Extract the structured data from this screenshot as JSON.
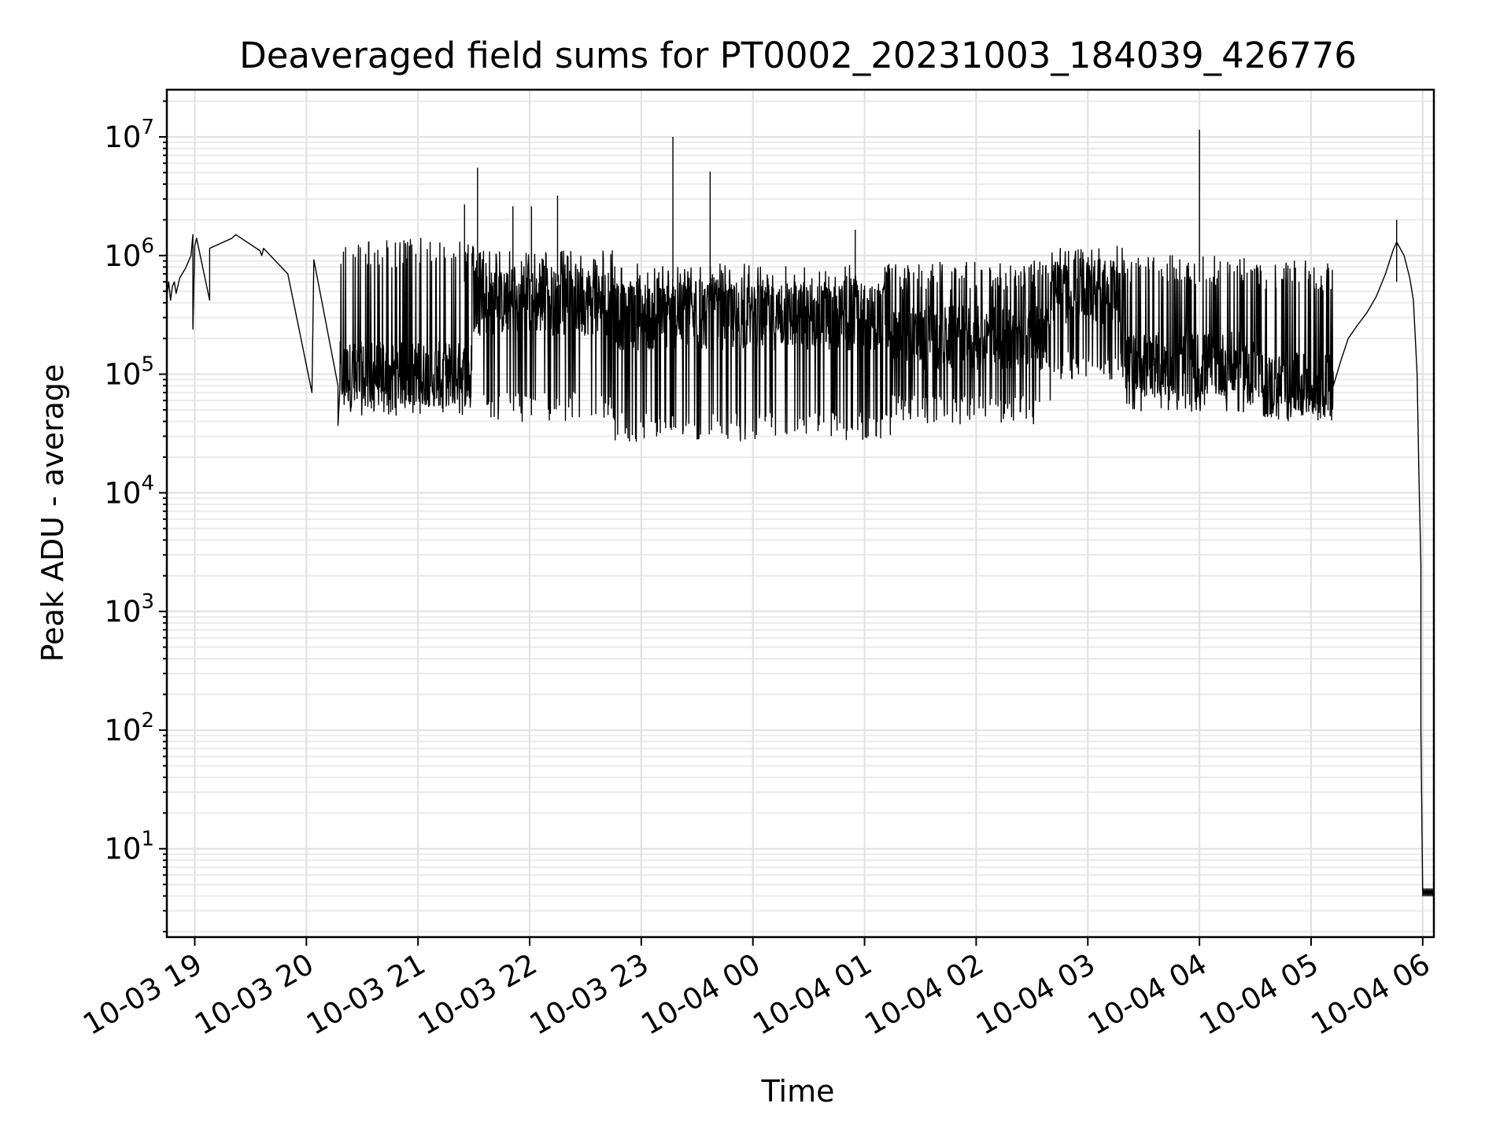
{
  "chart_data": {
    "type": "line",
    "title": "Deaveraged field sums for PT0002_20231003_184039_426776",
    "xlabel": "Time",
    "ylabel": "Peak ADU - average",
    "yscale": "log",
    "xlim": [
      "2023-10-03 18:45",
      "2023-10-04 06:06"
    ],
    "ylim": [
      1.8,
      25000000
    ],
    "grid": true,
    "x_ticks": [
      "10-03 19",
      "10-03 20",
      "10-03 21",
      "10-03 22",
      "10-03 23",
      "10-04 00",
      "10-04 01",
      "10-04 02",
      "10-04 03",
      "10-04 04",
      "10-04 05",
      "10-04 06"
    ],
    "x_tick_times": [
      "2023-10-03 19:00",
      "2023-10-03 20:00",
      "2023-10-03 21:00",
      "2023-10-03 22:00",
      "2023-10-03 23:00",
      "2023-10-04 00:00",
      "2023-10-04 01:00",
      "2023-10-04 02:00",
      "2023-10-04 03:00",
      "2023-10-04 04:00",
      "2023-10-04 05:00",
      "2023-10-04 06:00"
    ],
    "y_ticks": [
      {
        "base": "10",
        "exp": "1",
        "value": 10
      },
      {
        "base": "10",
        "exp": "2",
        "value": 100
      },
      {
        "base": "10",
        "exp": "3",
        "value": 1000
      },
      {
        "base": "10",
        "exp": "4",
        "value": 10000
      },
      {
        "base": "10",
        "exp": "5",
        "value": 100000
      },
      {
        "base": "10",
        "exp": "6",
        "value": 1000000
      },
      {
        "base": "10",
        "exp": "7",
        "value": 10000000
      }
    ],
    "series": [
      {
        "color": "#000000",
        "points": [
          [
            "2023-10-03 18:45",
            450000
          ],
          [
            "2023-10-03 18:46",
            600000
          ],
          [
            "2023-10-03 18:47",
            420000
          ],
          [
            "2023-10-03 18:48",
            550000
          ],
          [
            "2023-10-03 18:49",
            600000
          ],
          [
            "2023-10-03 18:50",
            480000
          ],
          [
            "2023-10-03 18:52",
            650000
          ],
          [
            "2023-10-03 18:55",
            780000
          ],
          [
            "2023-10-03 18:58",
            1000000
          ],
          [
            "2023-10-03 18:59",
            1500000
          ],
          [
            "2023-10-03 18:59",
            240000
          ],
          [
            "2023-10-03 19:00",
            1200000
          ],
          [
            "2023-10-03 19:01",
            1400000
          ],
          [
            "2023-10-03 19:08",
            420000
          ],
          [
            "2023-10-03 19:08",
            1150000
          ],
          [
            "2023-10-03 19:20",
            1400000
          ],
          [
            "2023-10-03 19:22",
            1500000
          ],
          [
            "2023-10-03 19:35",
            1100000
          ],
          [
            "2023-10-03 19:36",
            1000000
          ],
          [
            "2023-10-03 19:37",
            1150000
          ],
          [
            "2023-10-03 19:50",
            700000
          ],
          [
            "2023-10-03 20:03",
            70000
          ],
          [
            "2023-10-03 20:04",
            920000
          ],
          [
            "2023-10-03 20:17",
            80000
          ],
          [
            "2023-10-03 20:17",
            37000
          ],
          [
            "2023-10-03 20:18",
            75000
          ]
        ],
        "spikes": [
          [
            "2023-10-03 21:32",
            5500000
          ],
          [
            "2023-10-03 22:15",
            3200000
          ],
          [
            "2023-10-03 23:17",
            10000000
          ],
          [
            "2023-10-03 23:37",
            5100000
          ],
          [
            "2023-10-04 00:55",
            1650000
          ],
          [
            "2023-10-04 04:00",
            11500000
          ],
          [
            "2023-10-04 05:46",
            2000000
          ],
          [
            "2023-10-03 21:25",
            2700000
          ],
          [
            "2023-10-03 21:51",
            2600000
          ],
          [
            "2023-10-03 22:01",
            2600000
          ]
        ],
        "dense_segments": [
          {
            "start": "2023-10-03 20:18",
            "end": "2023-10-03 21:30",
            "low": 45000,
            "typical": 100000,
            "high": 1400000
          },
          {
            "start": "2023-10-03 21:30",
            "end": "2023-10-03 22:45",
            "low": 40000,
            "typical": 400000,
            "high": 1100000
          },
          {
            "start": "2023-10-03 22:45",
            "end": "2023-10-04 01:15",
            "low": 27000,
            "typical": 300000,
            "high": 850000
          },
          {
            "start": "2023-10-04 01:15",
            "end": "2023-10-04 02:40",
            "low": 38000,
            "typical": 200000,
            "high": 900000
          },
          {
            "start": "2023-10-04 02:40",
            "end": "2023-10-04 03:20",
            "low": 90000,
            "typical": 500000,
            "high": 1200000
          },
          {
            "start": "2023-10-04 03:20",
            "end": "2023-10-04 04:30",
            "low": 48000,
            "typical": 120000,
            "high": 1000000
          },
          {
            "start": "2023-10-04 04:30",
            "end": "2023-10-04 05:12",
            "low": 40000,
            "typical": 80000,
            "high": 900000
          }
        ],
        "tail": [
          [
            "2023-10-04 05:12",
            80000
          ],
          [
            "2023-10-04 05:16",
            130000
          ],
          [
            "2023-10-04 05:20",
            200000
          ],
          [
            "2023-10-04 05:25",
            260000
          ],
          [
            "2023-10-04 05:30",
            330000
          ],
          [
            "2023-10-04 05:35",
            450000
          ],
          [
            "2023-10-04 05:40",
            700000
          ],
          [
            "2023-10-04 05:44",
            1100000
          ],
          [
            "2023-10-04 05:46",
            1300000
          ],
          [
            "2023-10-04 05:50",
            1000000
          ],
          [
            "2023-10-04 05:53",
            650000
          ],
          [
            "2023-10-04 05:55",
            420000
          ],
          [
            "2023-10-04 05:57",
            100000
          ],
          [
            "2023-10-04 05:58",
            13000
          ],
          [
            "2023-10-04 05:59",
            2500
          ],
          [
            "2023-10-04 05:59",
            100
          ],
          [
            "2023-10-04 06:00",
            4
          ]
        ],
        "floor": {
          "start": "2023-10-04 06:00",
          "end": "2023-10-04 06:06",
          "value": 4,
          "high": 4.6
        }
      }
    ]
  }
}
